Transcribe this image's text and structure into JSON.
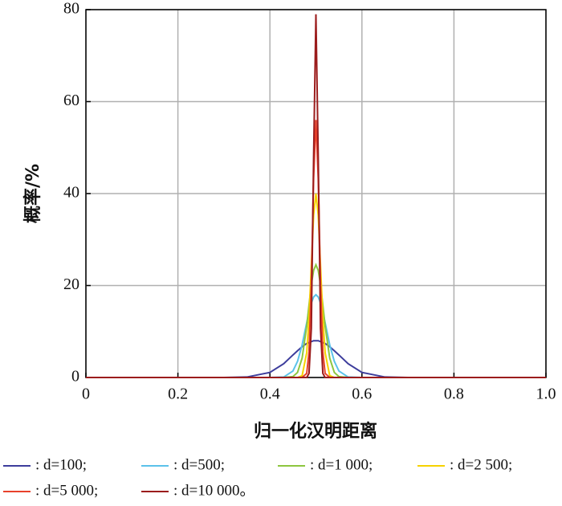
{
  "chart_data": {
    "type": "line",
    "xlabel": "归一化汉明距离",
    "ylabel": "概率/%",
    "x": [
      0,
      0.3,
      0.35,
      0.4,
      0.43,
      0.45,
      0.46,
      0.47,
      0.48,
      0.485,
      0.49,
      0.495,
      0.5,
      0.505,
      0.51,
      0.515,
      0.52,
      0.53,
      0.54,
      0.55,
      0.57,
      0.6,
      0.65,
      0.7,
      1
    ],
    "series": [
      {
        "name": ": d=100;",
        "color": "#3d3d9c",
        "values": [
          0,
          0,
          0.1,
          1.1,
          3.0,
          4.9,
          5.8,
          6.7,
          7.4,
          7.6,
          7.8,
          8.0,
          8,
          8.0,
          7.8,
          7.6,
          7.4,
          6.7,
          5.8,
          4.9,
          3.0,
          1.1,
          0.1,
          0,
          0
        ]
      },
      {
        "name": ": d=500;",
        "color": "#5bc2ea",
        "values": [
          0,
          0,
          0,
          0,
          0.1,
          1.4,
          3.5,
          7.1,
          11.9,
          14.3,
          16.2,
          17.5,
          18,
          17.5,
          16.2,
          14.3,
          11.9,
          7.1,
          3.5,
          1.4,
          0.1,
          0,
          0,
          0,
          0
        ]
      },
      {
        "name": ": d=1 000;",
        "color": "#8dc63f",
        "values": [
          0,
          0,
          0,
          0,
          0,
          0.2,
          1.1,
          4.2,
          11.2,
          15.8,
          20.2,
          23.3,
          24.5,
          23.3,
          20.2,
          15.8,
          11.2,
          4.2,
          1.1,
          0.2,
          0,
          0,
          0,
          0,
          0
        ]
      },
      {
        "name": ": d=2 500;",
        "color": "#f6d200",
        "values": [
          0,
          0,
          0,
          0,
          0,
          0,
          0,
          0.4,
          5.4,
          13.0,
          24.3,
          35.3,
          40,
          35.3,
          24.3,
          13.0,
          5.4,
          0.4,
          0,
          0,
          0,
          0,
          0,
          0,
          0
        ]
      },
      {
        "name": ": d=5 000;",
        "color": "#e8412b",
        "values": [
          0,
          0,
          0,
          0,
          0,
          0,
          0,
          0,
          0.9,
          5.6,
          20.2,
          43.4,
          56,
          43.4,
          20.2,
          5.6,
          0.9,
          0,
          0,
          0,
          0,
          0,
          0,
          0,
          0
        ]
      },
      {
        "name": ": d=10 000。",
        "color": "#9b1c1c",
        "values": [
          0,
          0,
          0,
          0,
          0,
          0,
          0,
          0,
          0,
          0.9,
          10.7,
          48.0,
          79,
          48.0,
          10.7,
          0.9,
          0,
          0,
          0,
          0,
          0,
          0,
          0,
          0,
          0
        ]
      }
    ],
    "xlim": [
      0,
      1
    ],
    "xticks": [
      0,
      0.2,
      0.4,
      0.6,
      0.8,
      {
        "value": 1,
        "label": "1.0"
      }
    ],
    "ylim": [
      0,
      80
    ],
    "yticks": [
      0,
      20,
      40,
      60,
      80
    ],
    "grid": true
  }
}
